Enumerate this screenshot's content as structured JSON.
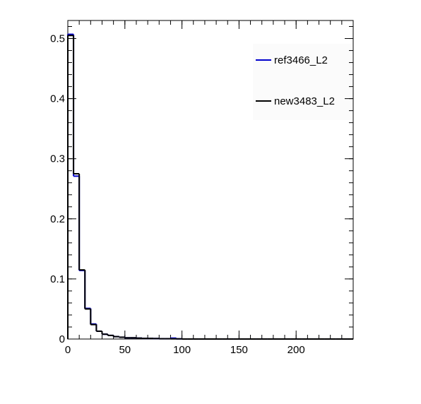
{
  "chart_data": {
    "type": "histogram",
    "bins": [
      0,
      5,
      10,
      15,
      20,
      25,
      30,
      35,
      40,
      45,
      50,
      55,
      60,
      65,
      70,
      75,
      80,
      85,
      90,
      95,
      100,
      105,
      110,
      115,
      120,
      125,
      130,
      135,
      140,
      145,
      150,
      155,
      160,
      165,
      170,
      175,
      180,
      185,
      190,
      195,
      200,
      205,
      210,
      215,
      220,
      225,
      230,
      235,
      240,
      245,
      250
    ],
    "series": [
      {
        "name": "ref3466_L2",
        "color": "#0000cc",
        "values": [
          0.507,
          0.271,
          0.114,
          0.051,
          0.025,
          0.013,
          0.008,
          0.006,
          0.004,
          0.003,
          0.002,
          0.002,
          0.0015,
          0.001,
          0.001,
          0.0008,
          0.0005,
          0.0005,
          0.0015,
          0.0003,
          0,
          0,
          0,
          0,
          0,
          0,
          0,
          0,
          0,
          0,
          0,
          0,
          0,
          0,
          0,
          0,
          0,
          0,
          0,
          0,
          0,
          0,
          0,
          0,
          0,
          0,
          0,
          0,
          0,
          0
        ]
      },
      {
        "name": "new3483_L2",
        "color": "#000000",
        "values": [
          0.505,
          0.275,
          0.115,
          0.05,
          0.024,
          0.013,
          0.008,
          0.006,
          0.004,
          0.003,
          0.002,
          0.002,
          0.0015,
          0.001,
          0.001,
          0.0008,
          0.0005,
          0.0005,
          0.0003,
          0.0003,
          0,
          0,
          0,
          0,
          0,
          0,
          0,
          0,
          0,
          0,
          0,
          0,
          0,
          0,
          0,
          0,
          0,
          0,
          0,
          0,
          0,
          0,
          0,
          0,
          0,
          0,
          0,
          0,
          0,
          0
        ]
      }
    ],
    "xlim": [
      0,
      250
    ],
    "ylim": [
      0,
      0.53
    ],
    "xticks": [
      0,
      50,
      100,
      150,
      200
    ],
    "yticks": [
      0,
      0.1,
      0.2,
      0.3,
      0.4,
      0.5
    ]
  }
}
